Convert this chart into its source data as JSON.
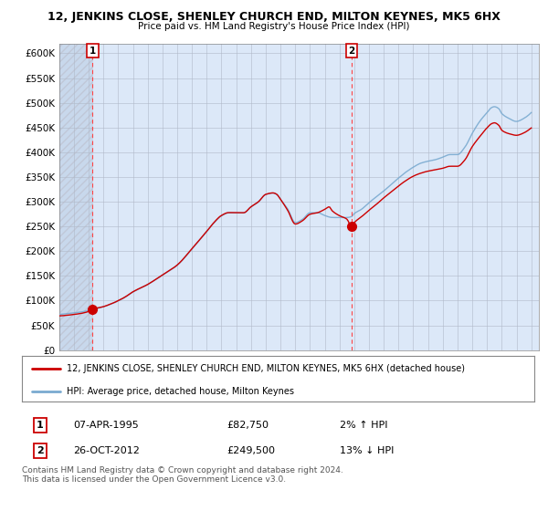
{
  "title": "12, JENKINS CLOSE, SHENLEY CHURCH END, MILTON KEYNES, MK5 6HX",
  "subtitle": "Price paid vs. HM Land Registry's House Price Index (HPI)",
  "ylim": [
    0,
    620000
  ],
  "yticks": [
    0,
    50000,
    100000,
    150000,
    200000,
    250000,
    300000,
    350000,
    400000,
    450000,
    500000,
    550000,
    600000
  ],
  "ytick_labels": [
    "£0",
    "£50K",
    "£100K",
    "£150K",
    "£200K",
    "£250K",
    "£300K",
    "£350K",
    "£400K",
    "£450K",
    "£500K",
    "£550K",
    "£600K"
  ],
  "purchase1_year": 1995.27,
  "purchase1_price": 82750,
  "purchase1_label": "1",
  "purchase2_year": 2012.82,
  "purchase2_price": 249500,
  "purchase2_label": "2",
  "legend_line1": "12, JENKINS CLOSE, SHENLEY CHURCH END, MILTON KEYNES, MK5 6HX (detached house)",
  "legend_line2": "HPI: Average price, detached house, Milton Keynes",
  "annotation1_date": "07-APR-1995",
  "annotation1_price": "£82,750",
  "annotation1_hpi": "2% ↑ HPI",
  "annotation2_date": "26-OCT-2012",
  "annotation2_price": "£249,500",
  "annotation2_hpi": "13% ↓ HPI",
  "footer": "Contains HM Land Registry data © Crown copyright and database right 2024.\nThis data is licensed under the Open Government Licence v3.0.",
  "plot_bg_color": "#dce8f8",
  "hatch_region_end": 1995.3,
  "grid_color": "#b0b8c8",
  "hpi_color": "#7aaad0",
  "price_color": "#cc0000",
  "vline_color": "#ff4444",
  "dot_color": "#cc0000",
  "xlim_left": 1993.0,
  "xlim_right": 2025.5
}
